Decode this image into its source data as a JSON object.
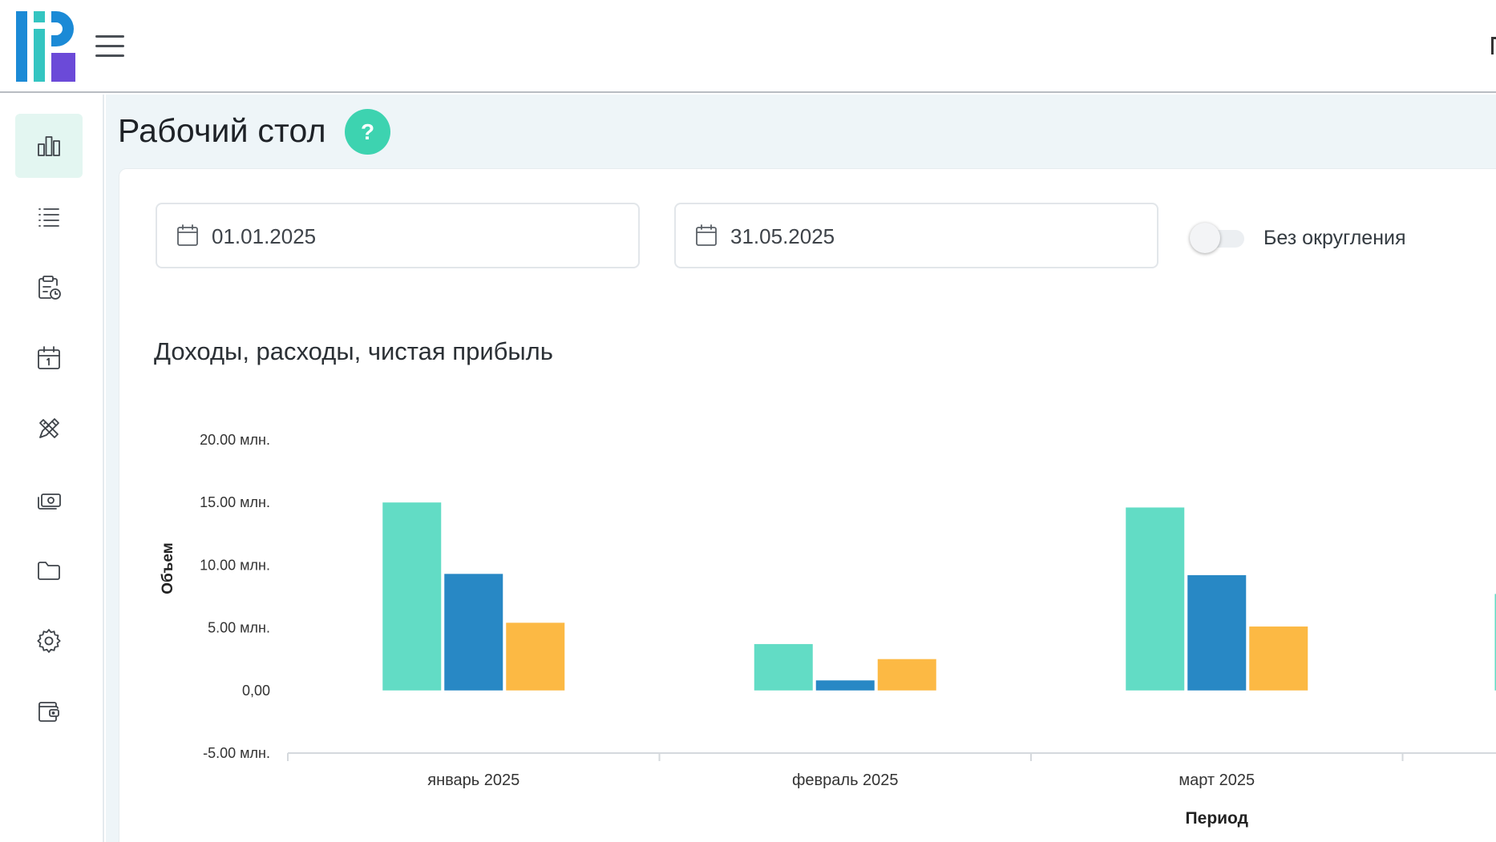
{
  "page": {
    "title": "Рабочий стол",
    "help_label": "?"
  },
  "sidebar": {
    "items": [
      {
        "id": "dashboard",
        "icon": "bar-chart-icon",
        "active": true
      },
      {
        "id": "list",
        "icon": "list-icon",
        "active": false
      },
      {
        "id": "tasks",
        "icon": "clipboard-clock-icon",
        "active": false
      },
      {
        "id": "calendar",
        "icon": "calendar-icon",
        "active": false
      },
      {
        "id": "tools",
        "icon": "pencil-ruler-icon",
        "active": false
      },
      {
        "id": "money",
        "icon": "cash-icon",
        "active": false
      },
      {
        "id": "files",
        "icon": "folder-icon",
        "active": false
      },
      {
        "id": "settings",
        "icon": "gear-icon",
        "active": false
      },
      {
        "id": "wallet",
        "icon": "wallet-icon",
        "active": false
      }
    ]
  },
  "filters": {
    "date_from": "01.01.2025",
    "date_to": "31.05.2025",
    "rounding_toggle_label": "Без округления",
    "rounding_toggle_on": false
  },
  "chart_title": "Доходы, расходы, чистая прибыль",
  "chart_data": {
    "type": "bar",
    "categories": [
      "январь 2025",
      "февраль 2025",
      "март 2025"
    ],
    "series": [
      {
        "values": [
          15.0,
          3.7,
          14.6
        ],
        "color": "#62dcc5"
      },
      {
        "values": [
          9.3,
          0.8,
          9.2
        ],
        "color": "#2888c5"
      },
      {
        "values": [
          5.4,
          2.5,
          5.1
        ],
        "color": "#fcb944"
      }
    ],
    "partial_category_value": 7.7,
    "ylim": [
      -5,
      20
    ],
    "yticks": [
      {
        "value": 20,
        "label": "20.00 млн."
      },
      {
        "value": 15,
        "label": "15.00 млн."
      },
      {
        "value": 10,
        "label": "10.00 млн."
      },
      {
        "value": 5,
        "label": "5.00 млн."
      },
      {
        "value": 0,
        "label": "0,00"
      },
      {
        "value": -5,
        "label": "-5.00 млн."
      }
    ],
    "ylabel": "Объем",
    "xlabel": "Период",
    "grid": false
  },
  "colors": {
    "accent": "#3dd3b0",
    "active_nav_bg": "#e3f6f1",
    "logo_blue": "#1b8ad6",
    "logo_teal": "#34c5c1",
    "logo_purple": "#6b4ad8"
  }
}
